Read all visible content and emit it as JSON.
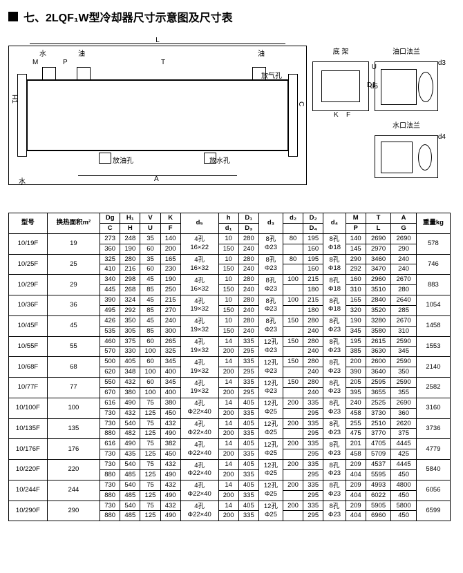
{
  "title": "七、2LQF₁W型冷却器尺寸示意图及尺寸表",
  "diagram_labels": {
    "water": "水",
    "oil": "油",
    "L": "L",
    "T": "T",
    "M": "M",
    "P": "P",
    "base_frame": "底 架",
    "oil_flange": "油口法兰",
    "water_flange": "水口法兰",
    "air_hole": "放气孔",
    "oil_hole": "放油孔",
    "water_hole": "放水孔",
    "A": "A",
    "H": "H",
    "H1": "H1",
    "C": "C",
    "D": "D",
    "U": "U",
    "K": "K",
    "F": "F",
    "d3": "d3",
    "d4": "d4",
    "d5": "d5",
    "D1": "D1",
    "D3": "D3",
    "h": "h"
  },
  "table_header": {
    "model": "型号",
    "area": "换热面积m²",
    "Dg": "Dg",
    "H1": "H₁",
    "V": "V",
    "K": "K",
    "C": "C",
    "H": "H",
    "U": "U",
    "F": "F",
    "d5": "d₅",
    "h": "h",
    "D1": "D₁",
    "d3": "d₃",
    "d1": "d₁",
    "D3": "D₃",
    "d2": "d₂",
    "D2": "D₂",
    "D4": "D₄",
    "d4": "d₄",
    "M": "M",
    "T": "T",
    "A": "A",
    "P": "P",
    "L": "L",
    "G": "G",
    "weight": "重量kg"
  },
  "rows": [
    {
      "model": "10/19F",
      "area": "19",
      "r1": [
        "273",
        "248",
        "35",
        "140",
        "4孔\n16×22",
        "10",
        "280",
        "8孔\nΦ23",
        "80",
        "195",
        "8孔\nΦ18",
        "140",
        "2690",
        "2690",
        "578"
      ],
      "r2": [
        "360",
        "190",
        "60",
        "200",
        "150",
        "240",
        "",
        "160",
        "145",
        "2970",
        "290"
      ]
    },
    {
      "model": "10/25F",
      "area": "25",
      "r1": [
        "325",
        "280",
        "35",
        "165",
        "4孔\n16×32",
        "10",
        "280",
        "8孔\nΦ23",
        "80",
        "195",
        "8孔\nΦ18",
        "290",
        "3460",
        "240",
        "746"
      ],
      "r2": [
        "410",
        "216",
        "60",
        "230",
        "150",
        "240",
        "",
        "160",
        "292",
        "3470",
        "240"
      ]
    },
    {
      "model": "10/29F",
      "area": "29",
      "r1": [
        "340",
        "298",
        "45",
        "190",
        "4孔\n16×32",
        "10",
        "280",
        "8孔\nΦ23",
        "100",
        "215",
        "8孔\nΦ18",
        "160",
        "2960",
        "2670",
        "883"
      ],
      "r2": [
        "445",
        "268",
        "85",
        "250",
        "150",
        "240",
        "",
        "180",
        "310",
        "3510",
        "280"
      ]
    },
    {
      "model": "10/36F",
      "area": "36",
      "r1": [
        "390",
        "324",
        "45",
        "215",
        "4孔\n19×32",
        "10",
        "280",
        "8孔\nΦ23",
        "100",
        "215",
        "8孔\nΦ18",
        "165",
        "2840",
        "2640",
        "1054"
      ],
      "r2": [
        "495",
        "292",
        "85",
        "270",
        "150",
        "240",
        "",
        "180",
        "320",
        "3520",
        "285"
      ]
    },
    {
      "model": "10/45F",
      "area": "45",
      "r1": [
        "426",
        "350",
        "45",
        "240",
        "4孔\n19×32",
        "10",
        "280",
        "8孔\nΦ23",
        "150",
        "280",
        "8孔\nΦ23",
        "190",
        "3280",
        "2670",
        "1458"
      ],
      "r2": [
        "535",
        "305",
        "85",
        "300",
        "150",
        "240",
        "",
        "240",
        "345",
        "3580",
        "310"
      ]
    },
    {
      "model": "10/55F",
      "area": "55",
      "r1": [
        "460",
        "375",
        "60",
        "265",
        "4孔\n19×32",
        "14",
        "335",
        "12孔\nΦ23",
        "150",
        "280",
        "8孔\nΦ23",
        "195",
        "2615",
        "2590",
        "1553"
      ],
      "r2": [
        "570",
        "330",
        "100",
        "325",
        "200",
        "295",
        "",
        "240",
        "385",
        "3630",
        "345"
      ]
    },
    {
      "model": "10/68F",
      "area": "68",
      "r1": [
        "500",
        "405",
        "60",
        "345",
        "4孔\n19×32",
        "14",
        "335",
        "12孔\nΦ23",
        "150",
        "280",
        "8孔\nΦ23",
        "200",
        "2600",
        "2590",
        "2140"
      ],
      "r2": [
        "620",
        "348",
        "100",
        "400",
        "200",
        "295",
        "",
        "240",
        "390",
        "3640",
        "350"
      ]
    },
    {
      "model": "10/77F",
      "area": "77",
      "r1": [
        "550",
        "432",
        "60",
        "345",
        "4孔\n19×32",
        "14",
        "335",
        "12孔\nΦ23",
        "150",
        "280",
        "8孔\nΦ23",
        "205",
        "2595",
        "2590",
        "2582"
      ],
      "r2": [
        "670",
        "380",
        "100",
        "400",
        "200",
        "295",
        "",
        "240",
        "395",
        "3655",
        "355"
      ]
    },
    {
      "model": "10/100F",
      "area": "100",
      "r1": [
        "616",
        "490",
        "75",
        "380",
        "4孔\nΦ22×40",
        "14",
        "405",
        "12孔\nΦ25",
        "200",
        "335",
        "8孔\nΦ23",
        "240",
        "2525",
        "2690",
        "3160"
      ],
      "r2": [
        "730",
        "432",
        "125",
        "450",
        "200",
        "335",
        "",
        "295",
        "458",
        "3730",
        "360"
      ]
    },
    {
      "model": "10/135F",
      "area": "135",
      "r1": [
        "730",
        "540",
        "75",
        "432",
        "4孔\nΦ22×40",
        "14",
        "405",
        "12孔\nΦ25",
        "200",
        "335",
        "8孔\nΦ23",
        "255",
        "2510",
        "2620",
        "3736"
      ],
      "r2": [
        "880",
        "482",
        "125",
        "490",
        "200",
        "335",
        "",
        "295",
        "475",
        "3770",
        "375"
      ]
    },
    {
      "model": "10/176F",
      "area": "176",
      "r1": [
        "616",
        "490",
        "75",
        "382",
        "4孔\nΦ22×40",
        "14",
        "405",
        "12孔\nΦ25",
        "200",
        "335",
        "8孔\nΦ23",
        "201",
        "4705",
        "4445",
        "4779"
      ],
      "r2": [
        "730",
        "435",
        "125",
        "450",
        "200",
        "335",
        "",
        "295",
        "458",
        "5709",
        "425"
      ]
    },
    {
      "model": "10/220F",
      "area": "220",
      "r1": [
        "730",
        "540",
        "75",
        "432",
        "4孔\nΦ22×40",
        "14",
        "405",
        "12孔\nΦ25",
        "200",
        "335",
        "8孔\nΦ23",
        "209",
        "4537",
        "4445",
        "5840"
      ],
      "r2": [
        "880",
        "485",
        "125",
        "490",
        "200",
        "335",
        "",
        "295",
        "404",
        "5595",
        "450"
      ]
    },
    {
      "model": "10/244F",
      "area": "244",
      "r1": [
        "730",
        "540",
        "75",
        "432",
        "4孔\nΦ22×40",
        "14",
        "405",
        "12孔\nΦ25",
        "200",
        "335",
        "8孔\nΦ23",
        "209",
        "4993",
        "4800",
        "6056"
      ],
      "r2": [
        "880",
        "485",
        "125",
        "490",
        "200",
        "335",
        "",
        "295",
        "404",
        "6022",
        "450"
      ]
    },
    {
      "model": "10/290F",
      "area": "290",
      "r1": [
        "730",
        "540",
        "75",
        "432",
        "4孔\nΦ22×40",
        "14",
        "405",
        "12孔\nΦ25",
        "200",
        "335",
        "8孔\nΦ23",
        "209",
        "5905",
        "5800",
        "6599"
      ],
      "r2": [
        "880",
        "485",
        "125",
        "490",
        "200",
        "335",
        "",
        "295",
        "404",
        "6960",
        "450"
      ]
    }
  ]
}
